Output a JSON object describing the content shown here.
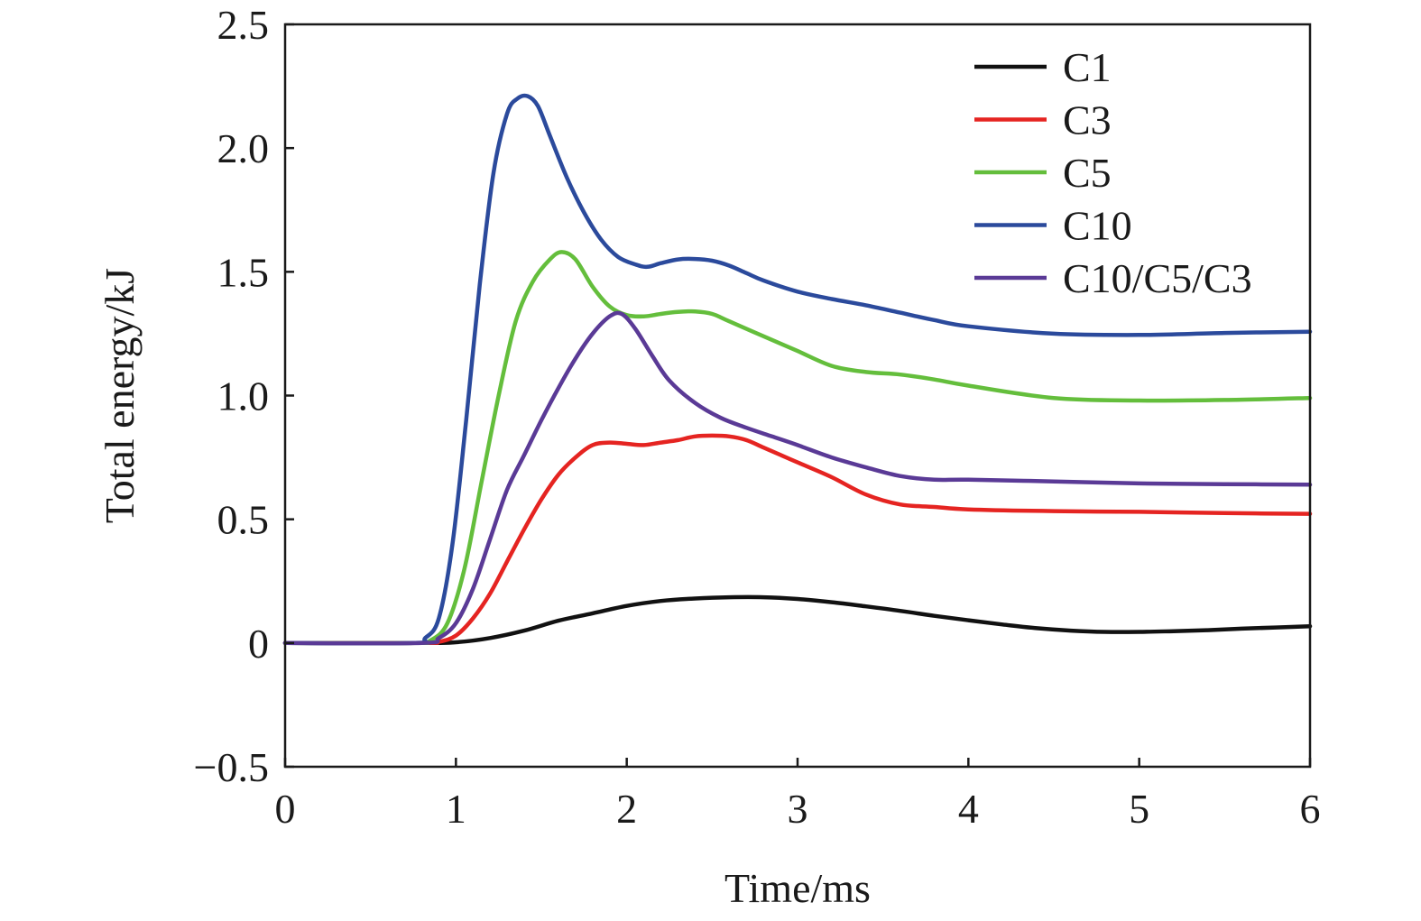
{
  "chart_data": {
    "type": "line",
    "title": "",
    "xlabel": "Time/ms",
    "ylabel": "Total energy/kJ",
    "xlim": [
      0,
      6
    ],
    "ylim": [
      -0.5,
      2.5
    ],
    "xticks": [
      0,
      1,
      2,
      3,
      4,
      5,
      6
    ],
    "xtick_labels": [
      "0",
      "1",
      "2",
      "3",
      "4",
      "5",
      "6"
    ],
    "yticks": [
      -0.5,
      0,
      0.5,
      1.0,
      1.5,
      2.0,
      2.5
    ],
    "ytick_labels": [
      "−0.5",
      "0",
      "0.5",
      "1.0",
      "1.5",
      "2.0",
      "2.5"
    ],
    "grid": false,
    "legend_position": "top-right",
    "series": [
      {
        "name": "C1",
        "color": "#111111",
        "x": [
          0,
          0.8,
          1.0,
          1.2,
          1.4,
          1.6,
          1.8,
          2.0,
          2.2,
          2.4,
          2.6,
          2.8,
          3.0,
          3.2,
          3.4,
          3.6,
          3.8,
          4.0,
          4.2,
          4.4,
          4.6,
          4.8,
          5.0,
          5.2,
          5.4,
          5.6,
          5.8,
          6.0
        ],
        "y": [
          0,
          0,
          0.003,
          0.02,
          0.05,
          0.09,
          0.12,
          0.15,
          0.17,
          0.18,
          0.185,
          0.185,
          0.178,
          0.165,
          0.148,
          0.13,
          0.11,
          0.092,
          0.075,
          0.06,
          0.05,
          0.045,
          0.045,
          0.048,
          0.052,
          0.058,
          0.063,
          0.068
        ]
      },
      {
        "name": "C3",
        "color": "#e52421",
        "x": [
          0,
          0.8,
          0.9,
          1.0,
          1.1,
          1.2,
          1.3,
          1.4,
          1.5,
          1.6,
          1.7,
          1.8,
          1.9,
          2.0,
          2.1,
          2.2,
          2.3,
          2.4,
          2.5,
          2.6,
          2.7,
          2.8,
          2.9,
          3.0,
          3.2,
          3.4,
          3.6,
          3.8,
          4.0,
          4.5,
          5.0,
          5.5,
          6.0
        ],
        "y": [
          0,
          0,
          0.005,
          0.03,
          0.1,
          0.2,
          0.33,
          0.46,
          0.58,
          0.68,
          0.75,
          0.8,
          0.81,
          0.805,
          0.8,
          0.81,
          0.82,
          0.835,
          0.838,
          0.835,
          0.82,
          0.79,
          0.76,
          0.73,
          0.67,
          0.6,
          0.56,
          0.55,
          0.54,
          0.533,
          0.53,
          0.525,
          0.522
        ]
      },
      {
        "name": "C5",
        "color": "#64be3c",
        "x": [
          0,
          0.75,
          0.85,
          0.95,
          1.05,
          1.15,
          1.25,
          1.35,
          1.45,
          1.55,
          1.62,
          1.7,
          1.8,
          1.9,
          2.0,
          2.1,
          2.2,
          2.3,
          2.4,
          2.5,
          2.6,
          2.8,
          3.0,
          3.2,
          3.4,
          3.6,
          3.8,
          4.0,
          4.5,
          5.0,
          5.5,
          6.0
        ],
        "y": [
          0,
          0,
          0.01,
          0.08,
          0.3,
          0.65,
          1.0,
          1.3,
          1.46,
          1.55,
          1.58,
          1.55,
          1.44,
          1.36,
          1.325,
          1.32,
          1.33,
          1.338,
          1.34,
          1.33,
          1.3,
          1.24,
          1.18,
          1.12,
          1.095,
          1.085,
          1.065,
          1.04,
          0.99,
          0.98,
          0.982,
          0.99
        ]
      },
      {
        "name": "C10",
        "color": "#2b4a9c",
        "x": [
          0,
          0.75,
          0.82,
          0.9,
          0.98,
          1.06,
          1.14,
          1.22,
          1.3,
          1.36,
          1.42,
          1.48,
          1.55,
          1.65,
          1.75,
          1.85,
          1.95,
          2.05,
          2.12,
          2.2,
          2.3,
          2.4,
          2.5,
          2.6,
          2.7,
          2.8,
          3.0,
          3.2,
          3.4,
          3.6,
          3.8,
          4.0,
          4.5,
          5.0,
          5.5,
          6.0
        ],
        "y": [
          0,
          0,
          0.02,
          0.1,
          0.4,
          0.9,
          1.45,
          1.9,
          2.14,
          2.2,
          2.21,
          2.17,
          2.05,
          1.88,
          1.74,
          1.63,
          1.56,
          1.53,
          1.52,
          1.535,
          1.55,
          1.552,
          1.545,
          1.525,
          1.495,
          1.465,
          1.42,
          1.39,
          1.365,
          1.335,
          1.305,
          1.28,
          1.25,
          1.245,
          1.253,
          1.258
        ]
      },
      {
        "name": "C10/C5/C3",
        "color": "#5a3a96",
        "x": [
          0,
          0.8,
          0.9,
          1.0,
          1.1,
          1.2,
          1.3,
          1.4,
          1.5,
          1.6,
          1.7,
          1.8,
          1.9,
          1.97,
          2.05,
          2.15,
          2.25,
          2.4,
          2.55,
          2.7,
          2.85,
          3.0,
          3.2,
          3.4,
          3.6,
          3.8,
          4.0,
          4.5,
          5.0,
          5.5,
          6.0
        ],
        "y": [
          0,
          0,
          0.02,
          0.08,
          0.22,
          0.42,
          0.62,
          0.76,
          0.9,
          1.03,
          1.15,
          1.25,
          1.32,
          1.33,
          1.27,
          1.16,
          1.06,
          0.97,
          0.91,
          0.87,
          0.835,
          0.8,
          0.75,
          0.71,
          0.675,
          0.66,
          0.66,
          0.653,
          0.645,
          0.642,
          0.64
        ]
      }
    ]
  }
}
